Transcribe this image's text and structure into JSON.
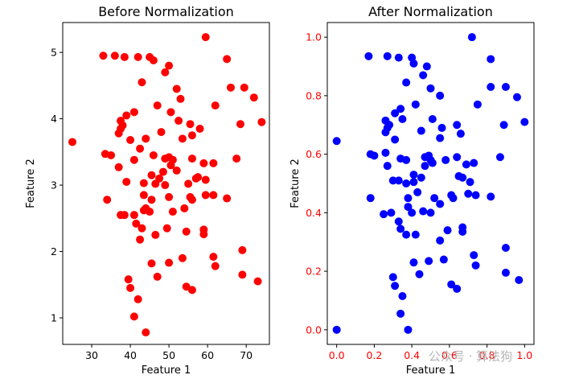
{
  "chart_data": [
    {
      "type": "scatter",
      "title": "Before Normalization",
      "xlabel": "Feature 1",
      "ylabel": "Feature 2",
      "xlim": [
        22.5,
        76
      ],
      "ylim": [
        0.6,
        5.45
      ],
      "xticks": [
        30,
        40,
        50,
        60,
        70
      ],
      "yticks": [
        1,
        2,
        3,
        4,
        5
      ],
      "tick_color": "#000000",
      "grid": false,
      "series": [
        {
          "color": "#ff0000",
          "points": [
            [
              25,
              3.65
            ],
            [
              33,
              4.95
            ],
            [
              36,
              4.95
            ],
            [
              38.5,
              4.93
            ],
            [
              42,
              4.93
            ],
            [
              45,
              4.93
            ],
            [
              46,
              4.88
            ],
            [
              43,
              4.55
            ],
            [
              50,
              4.8
            ],
            [
              49,
              4.7
            ],
            [
              59.5,
              5.23
            ],
            [
              65,
              4.9
            ],
            [
              66,
              4.47
            ],
            [
              69.5,
              4.47
            ],
            [
              72,
              4.32
            ],
            [
              52,
              4.45
            ],
            [
              53,
              4.3
            ],
            [
              47,
              4.2
            ],
            [
              62,
              4.2
            ],
            [
              41,
              4.1
            ],
            [
              37.5,
              3.97
            ],
            [
              39,
              4.05
            ],
            [
              50.5,
              4.1
            ],
            [
              38,
              3.9
            ],
            [
              37.5,
              3.85
            ],
            [
              37,
              3.78
            ],
            [
              44,
              3.7
            ],
            [
              40,
              3.68
            ],
            [
              48,
              3.8
            ],
            [
              52.5,
              3.97
            ],
            [
              55.5,
              3.92
            ],
            [
              58,
              3.85
            ],
            [
              56,
              3.75
            ],
            [
              53.5,
              3.7
            ],
            [
              68.5,
              3.92
            ],
            [
              74,
              3.95
            ],
            [
              33.5,
              3.47
            ],
            [
              35,
              3.45
            ],
            [
              42.5,
              3.55
            ],
            [
              46,
              3.45
            ],
            [
              49,
              3.4
            ],
            [
              50,
              3.42
            ],
            [
              51,
              3.38
            ],
            [
              56,
              3.4
            ],
            [
              59,
              3.33
            ],
            [
              61.5,
              3.33
            ],
            [
              67.5,
              3.4
            ],
            [
              41,
              3.38
            ],
            [
              37,
              3.27
            ],
            [
              45.5,
              3.15
            ],
            [
              48.5,
              3.2
            ],
            [
              52,
              3.22
            ],
            [
              47.5,
              3.1
            ],
            [
              50.5,
              3.3
            ],
            [
              57.5,
              3.12
            ],
            [
              59.5,
              3.08
            ],
            [
              39,
              3.05
            ],
            [
              43.5,
              3.03
            ],
            [
              46.5,
              3.02
            ],
            [
              49,
              3.0
            ],
            [
              55,
              3.02
            ],
            [
              57,
              3.1
            ],
            [
              34,
              2.78
            ],
            [
              43.5,
              2.85
            ],
            [
              45.5,
              2.78
            ],
            [
              50,
              2.82
            ],
            [
              55.5,
              2.82
            ],
            [
              56,
              2.78
            ],
            [
              59.5,
              2.85
            ],
            [
              61.5,
              2.85
            ],
            [
              65,
              2.8
            ],
            [
              44,
              2.65
            ],
            [
              45,
              2.6
            ],
            [
              37.5,
              2.55
            ],
            [
              38.5,
              2.55
            ],
            [
              41,
              2.55
            ],
            [
              43.5,
              2.62
            ],
            [
              51,
              2.6
            ],
            [
              54,
              2.65
            ],
            [
              41.5,
              2.42
            ],
            [
              43,
              2.35
            ],
            [
              46.5,
              2.25
            ],
            [
              49.5,
              2.35
            ],
            [
              54.5,
              2.3
            ],
            [
              59,
              2.33
            ],
            [
              42.5,
              2.18
            ],
            [
              59,
              2.26
            ],
            [
              53.5,
              1.9
            ],
            [
              61.5,
              1.92
            ],
            [
              69,
              2.02
            ],
            [
              45.5,
              1.82
            ],
            [
              50,
              1.83
            ],
            [
              62,
              1.78
            ],
            [
              47,
              1.62
            ],
            [
              39.5,
              1.58
            ],
            [
              40,
              1.45
            ],
            [
              54.5,
              1.47
            ],
            [
              56,
              1.42
            ],
            [
              42,
              1.28
            ],
            [
              69,
              1.65
            ],
            [
              73,
              1.55
            ],
            [
              41,
              1.02
            ],
            [
              44,
              0.78
            ]
          ]
        }
      ]
    },
    {
      "type": "scatter",
      "title": "After Normalization",
      "xlabel": "Feature 1",
      "ylabel": "Feature 2",
      "xlim": [
        -0.05,
        1.05
      ],
      "ylim": [
        -0.05,
        1.05
      ],
      "xticks": [
        0.0,
        0.2,
        0.4,
        0.6,
        0.8,
        1.0
      ],
      "xtick_labels": [
        "0.0",
        "0.2",
        "0.4",
        "0.6",
        "0.8",
        "1.0"
      ],
      "yticks": [
        0.0,
        0.2,
        0.4,
        0.6,
        0.8,
        1.0
      ],
      "ytick_labels": [
        "0.0",
        "0.2",
        "0.4",
        "0.6",
        "0.8",
        "1.0"
      ],
      "tick_color": "#ff0000",
      "grid": false,
      "series": [
        {
          "color": "#0000ff",
          "points": [
            [
              0.0,
              0.645
            ],
            [
              0.17,
              0.935
            ],
            [
              0.27,
              0.935
            ],
            [
              0.33,
              0.93
            ],
            [
              0.4,
              0.93
            ],
            [
              0.41,
              0.91
            ],
            [
              0.46,
              0.87
            ],
            [
              0.48,
              0.9
            ],
            [
              0.72,
              1.0
            ],
            [
              0.82,
              0.925
            ],
            [
              0.37,
              0.845
            ],
            [
              0.5,
              0.825
            ],
            [
              0.55,
              0.8
            ],
            [
              0.9,
              0.83
            ],
            [
              0.82,
              0.83
            ],
            [
              0.96,
              0.795
            ],
            [
              0.42,
              0.77
            ],
            [
              0.75,
              0.77
            ],
            [
              0.31,
              0.74
            ],
            [
              0.34,
              0.755
            ],
            [
              0.26,
              0.715
            ],
            [
              0.27,
              0.69
            ],
            [
              0.28,
              0.7
            ],
            [
              0.26,
              0.675
            ],
            [
              0.35,
              0.72
            ],
            [
              0.45,
              0.68
            ],
            [
              0.51,
              0.72
            ],
            [
              0.56,
              0.69
            ],
            [
              0.64,
              0.7
            ],
            [
              0.66,
              0.67
            ],
            [
              0.89,
              0.7
            ],
            [
              1.0,
              0.71
            ],
            [
              0.31,
              0.65
            ],
            [
              0.55,
              0.655
            ],
            [
              0.18,
              0.6
            ],
            [
              0.2,
              0.595
            ],
            [
              0.26,
              0.605
            ],
            [
              0.34,
              0.585
            ],
            [
              0.37,
              0.58
            ],
            [
              0.47,
              0.59
            ],
            [
              0.49,
              0.595
            ],
            [
              0.5,
              0.58
            ],
            [
              0.58,
              0.58
            ],
            [
              0.64,
              0.59
            ],
            [
              0.69,
              0.565
            ],
            [
              0.73,
              0.57
            ],
            [
              0.87,
              0.59
            ],
            [
              0.27,
              0.56
            ],
            [
              0.47,
              0.56
            ],
            [
              0.51,
              0.57
            ],
            [
              0.41,
              0.53
            ],
            [
              0.45,
              0.52
            ],
            [
              0.3,
              0.51
            ],
            [
              0.33,
              0.51
            ],
            [
              0.37,
              0.5
            ],
            [
              0.41,
              0.505
            ],
            [
              0.65,
              0.525
            ],
            [
              0.67,
              0.52
            ],
            [
              0.71,
              0.505
            ],
            [
              0.18,
              0.45
            ],
            [
              0.38,
              0.45
            ],
            [
              0.43,
              0.47
            ],
            [
              0.52,
              0.45
            ],
            [
              0.61,
              0.46
            ],
            [
              0.62,
              0.45
            ],
            [
              0.7,
              0.465
            ],
            [
              0.74,
              0.46
            ],
            [
              0.82,
              0.455
            ],
            [
              0.29,
              0.4
            ],
            [
              0.38,
              0.42
            ],
            [
              0.4,
              0.4
            ],
            [
              0.46,
              0.405
            ],
            [
              0.5,
              0.4
            ],
            [
              0.55,
              0.43
            ],
            [
              0.25,
              0.395
            ],
            [
              0.33,
              0.37
            ],
            [
              0.34,
              0.345
            ],
            [
              0.42,
              0.325
            ],
            [
              0.55,
              0.305
            ],
            [
              0.59,
              0.34
            ],
            [
              0.67,
              0.35
            ],
            [
              0.67,
              0.335
            ],
            [
              0.37,
              0.325
            ],
            [
              0.41,
              0.23
            ],
            [
              0.49,
              0.235
            ],
            [
              0.57,
              0.24
            ],
            [
              0.73,
              0.255
            ],
            [
              0.74,
              0.22
            ],
            [
              0.9,
              0.28
            ],
            [
              0.3,
              0.18
            ],
            [
              0.31,
              0.15
            ],
            [
              0.44,
              0.19
            ],
            [
              0.61,
              0.155
            ],
            [
              0.64,
              0.14
            ],
            [
              0.9,
              0.195
            ],
            [
              0.97,
              0.17
            ],
            [
              0.35,
              0.115
            ],
            [
              0.34,
              0.055
            ],
            [
              0.38,
              0.0
            ],
            [
              0.0,
              0.0
            ]
          ]
        }
      ]
    }
  ],
  "watermark": "公众号 · 算法狗"
}
